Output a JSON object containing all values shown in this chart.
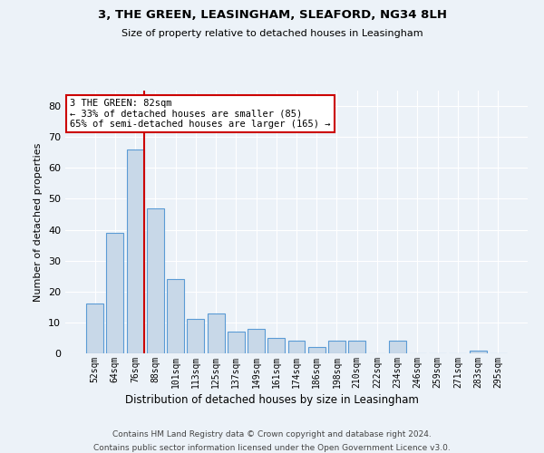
{
  "title1": "3, THE GREEN, LEASINGHAM, SLEAFORD, NG34 8LH",
  "title2": "Size of property relative to detached houses in Leasingham",
  "xlabel": "Distribution of detached houses by size in Leasingham",
  "ylabel": "Number of detached properties",
  "categories": [
    "52sqm",
    "64sqm",
    "76sqm",
    "88sqm",
    "101sqm",
    "113sqm",
    "125sqm",
    "137sqm",
    "149sqm",
    "161sqm",
    "174sqm",
    "186sqm",
    "198sqm",
    "210sqm",
    "222sqm",
    "234sqm",
    "246sqm",
    "259sqm",
    "271sqm",
    "283sqm",
    "295sqm"
  ],
  "values": [
    16,
    39,
    66,
    47,
    24,
    11,
    13,
    7,
    8,
    5,
    4,
    2,
    4,
    4,
    0,
    4,
    0,
    0,
    0,
    1,
    0
  ],
  "bar_color": "#c8d8e8",
  "bar_edge_color": "#5b9bd5",
  "red_line_index": 2,
  "annotation_text": "3 THE GREEN: 82sqm\n← 33% of detached houses are smaller (85)\n65% of semi-detached houses are larger (165) →",
  "annotation_box_color": "#ffffff",
  "annotation_box_edge": "#cc0000",
  "ylim": [
    0,
    85
  ],
  "yticks": [
    0,
    10,
    20,
    30,
    40,
    50,
    60,
    70,
    80
  ],
  "footer1": "Contains HM Land Registry data © Crown copyright and database right 2024.",
  "footer2": "Contains public sector information licensed under the Open Government Licence v3.0.",
  "background_color": "#ecf2f8",
  "plot_bg_color": "#ecf2f8",
  "grid_color": "#ffffff",
  "red_line_color": "#cc0000"
}
